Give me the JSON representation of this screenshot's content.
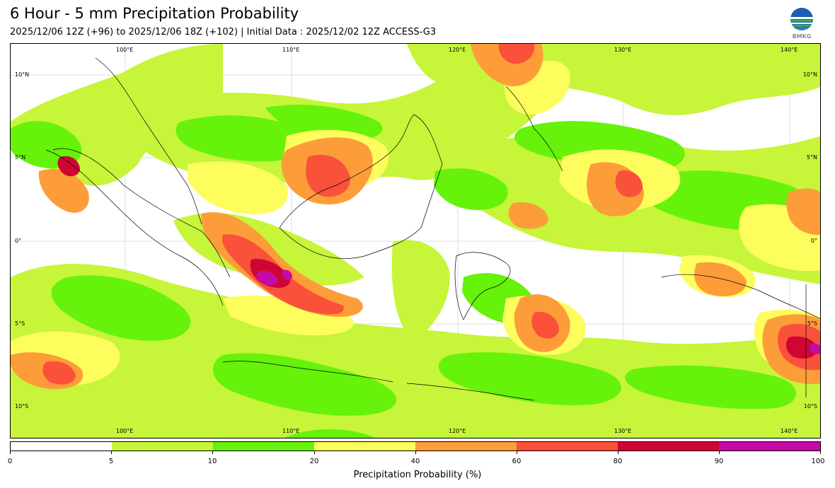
{
  "title": "6 Hour - 5 mm Precipitation Probability",
  "subtitle": "2025/12/06 12Z (+96) to 2025/12/06 18Z (+102) | Initial Data : 2025/12/02 12Z ACCESS-G3",
  "logo": {
    "name": "bmkg-logo",
    "text": "BMKG"
  },
  "map": {
    "lon_range": [
      93,
      142
    ],
    "lat_range": [
      -12,
      12
    ],
    "lon_labels": [
      "100°E",
      "110°E",
      "120°E",
      "130°E",
      "140°E"
    ],
    "lat_labels": [
      "10°N",
      "5°N",
      "0°",
      "5°S",
      "10°S"
    ],
    "colors": {
      "land_line": "#000000",
      "grid": "#dddddd"
    }
  },
  "colorbar": {
    "label": "Precipitation Probability (%)",
    "ticks": [
      "0",
      "5",
      "10",
      "20",
      "40",
      "60",
      "80",
      "90",
      "100"
    ],
    "bins": [
      {
        "range": "0-5",
        "color": "#ffffff"
      },
      {
        "range": "5-10",
        "color": "#c6f53a"
      },
      {
        "range": "10-20",
        "color": "#66f20a"
      },
      {
        "range": "20-40",
        "color": "#fdfd5e"
      },
      {
        "range": "40-60",
        "color": "#fd9d39"
      },
      {
        "range": "60-80",
        "color": "#f9513a"
      },
      {
        "range": "80-90",
        "color": "#cf0534"
      },
      {
        "range": "90-100",
        "color": "#c40ba5"
      }
    ]
  }
}
